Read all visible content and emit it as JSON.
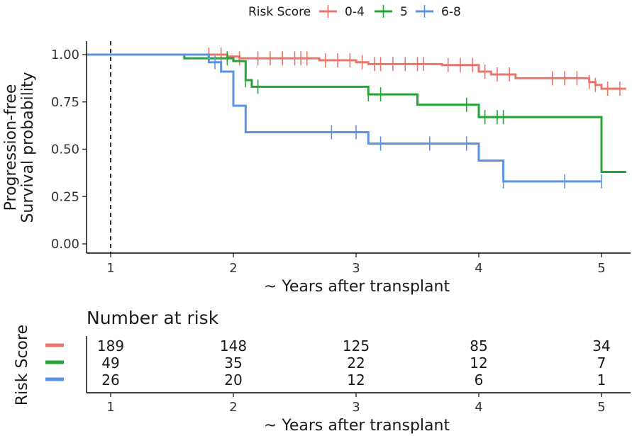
{
  "legend": {
    "title": "Risk Score",
    "entries": [
      {
        "label": "0-4",
        "color": "#E8766D"
      },
      {
        "label": "5",
        "color": "#22A634"
      },
      {
        "label": "6-8",
        "color": "#5B93E3"
      }
    ]
  },
  "chart_data": {
    "type": "line",
    "subtype": "kaplan-meier step plot",
    "xlabel": "~ Years after transplant",
    "ylabel_lines": [
      "Progression-free",
      "Survival probability"
    ],
    "xlim": [
      0.8,
      5.2
    ],
    "ylim": [
      0,
      1
    ],
    "x_ticks": [
      1,
      2,
      3,
      4,
      5
    ],
    "x_tick_labels": [
      "1",
      "2",
      "3",
      "4",
      "5"
    ],
    "y_ticks": [
      0,
      0.25,
      0.5,
      0.75,
      1.0
    ],
    "y_tick_labels": [
      "0.00",
      "0.25",
      "0.50",
      "0.75",
      "1.00"
    ],
    "reference_line": {
      "x": 1,
      "style": "dashed"
    },
    "series": [
      {
        "name": "0-4",
        "color": "#E8766D",
        "steps": [
          [
            0.8,
            1.0
          ],
          [
            1.95,
            0.99
          ],
          [
            2.05,
            0.98
          ],
          [
            2.7,
            0.97
          ],
          [
            3.0,
            0.96
          ],
          [
            3.1,
            0.95
          ],
          [
            3.7,
            0.945
          ],
          [
            4.0,
            0.91
          ],
          [
            4.1,
            0.895
          ],
          [
            4.3,
            0.875
          ],
          [
            4.9,
            0.855
          ],
          [
            4.95,
            0.84
          ],
          [
            5.0,
            0.82
          ],
          [
            5.2,
            0.82
          ]
        ],
        "censor_x": [
          1.8,
          1.9,
          2.05,
          2.2,
          2.3,
          2.4,
          2.5,
          2.55,
          2.6,
          2.75,
          2.85,
          2.95,
          3.05,
          3.15,
          3.2,
          3.3,
          3.4,
          3.5,
          3.55,
          3.75,
          3.85,
          3.95,
          4.05,
          4.15,
          4.25,
          4.6,
          4.7,
          4.8,
          4.9,
          4.95,
          5.05,
          5.15
        ]
      },
      {
        "name": "5",
        "color": "#22A634",
        "steps": [
          [
            0.8,
            1.0
          ],
          [
            1.6,
            0.98
          ],
          [
            2.0,
            0.965
          ],
          [
            2.1,
            0.865
          ],
          [
            2.15,
            0.83
          ],
          [
            3.1,
            0.79
          ],
          [
            3.5,
            0.735
          ],
          [
            4.0,
            0.67
          ],
          [
            5.0,
            0.38
          ],
          [
            5.2,
            0.38
          ]
        ],
        "censor_x": [
          1.95,
          2.1,
          2.2,
          3.1,
          3.2,
          3.9,
          4.05,
          4.15,
          4.2
        ]
      },
      {
        "name": "6-8",
        "color": "#5B93E3",
        "steps": [
          [
            0.8,
            1.0
          ],
          [
            1.8,
            0.96
          ],
          [
            1.9,
            0.91
          ],
          [
            2.0,
            0.73
          ],
          [
            2.1,
            0.59
          ],
          [
            3.1,
            0.53
          ],
          [
            4.0,
            0.44
          ],
          [
            4.2,
            0.33
          ],
          [
            5.0,
            0.33
          ]
        ],
        "censor_x": [
          1.85,
          2.8,
          3.0,
          3.2,
          3.6,
          3.9,
          4.2,
          4.7,
          5.0
        ]
      }
    ]
  },
  "risk_table": {
    "title": "Number at risk",
    "ylabel": "Risk Score",
    "xlabel": "~ Years after transplant",
    "x_tick_labels": [
      "1",
      "2",
      "3",
      "4",
      "5"
    ],
    "rows": [
      {
        "group": "0-4",
        "color": "#E8766D",
        "values": [
          "189",
          "148",
          "125",
          "85",
          "34"
        ]
      },
      {
        "group": "5",
        "color": "#22A634",
        "values": [
          "49",
          "35",
          "22",
          "12",
          "7"
        ]
      },
      {
        "group": "6-8",
        "color": "#5B93E3",
        "values": [
          "26",
          "20",
          "12",
          "6",
          "1"
        ]
      }
    ]
  }
}
